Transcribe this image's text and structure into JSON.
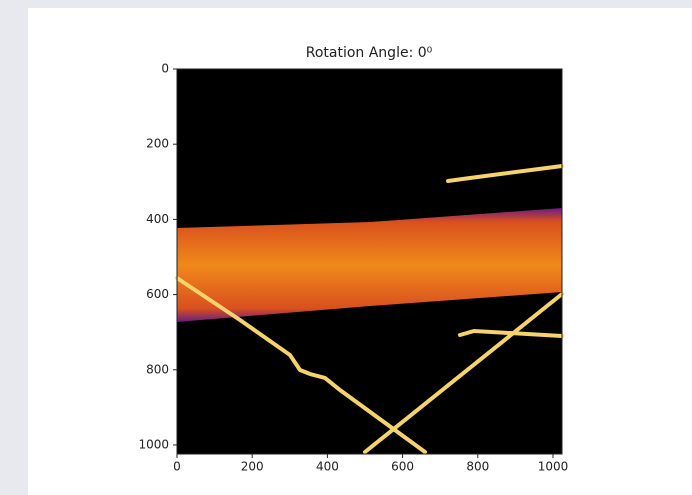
{
  "chart_data": {
    "type": "image",
    "title": "Rotation Angle: 0⁰",
    "xlim": [
      0,
      1024
    ],
    "xticks": [
      0,
      200,
      400,
      600,
      800,
      1000
    ],
    "ylim": [
      1024,
      0
    ],
    "yticks": [
      0,
      200,
      400,
      600,
      800,
      1000
    ]
  }
}
